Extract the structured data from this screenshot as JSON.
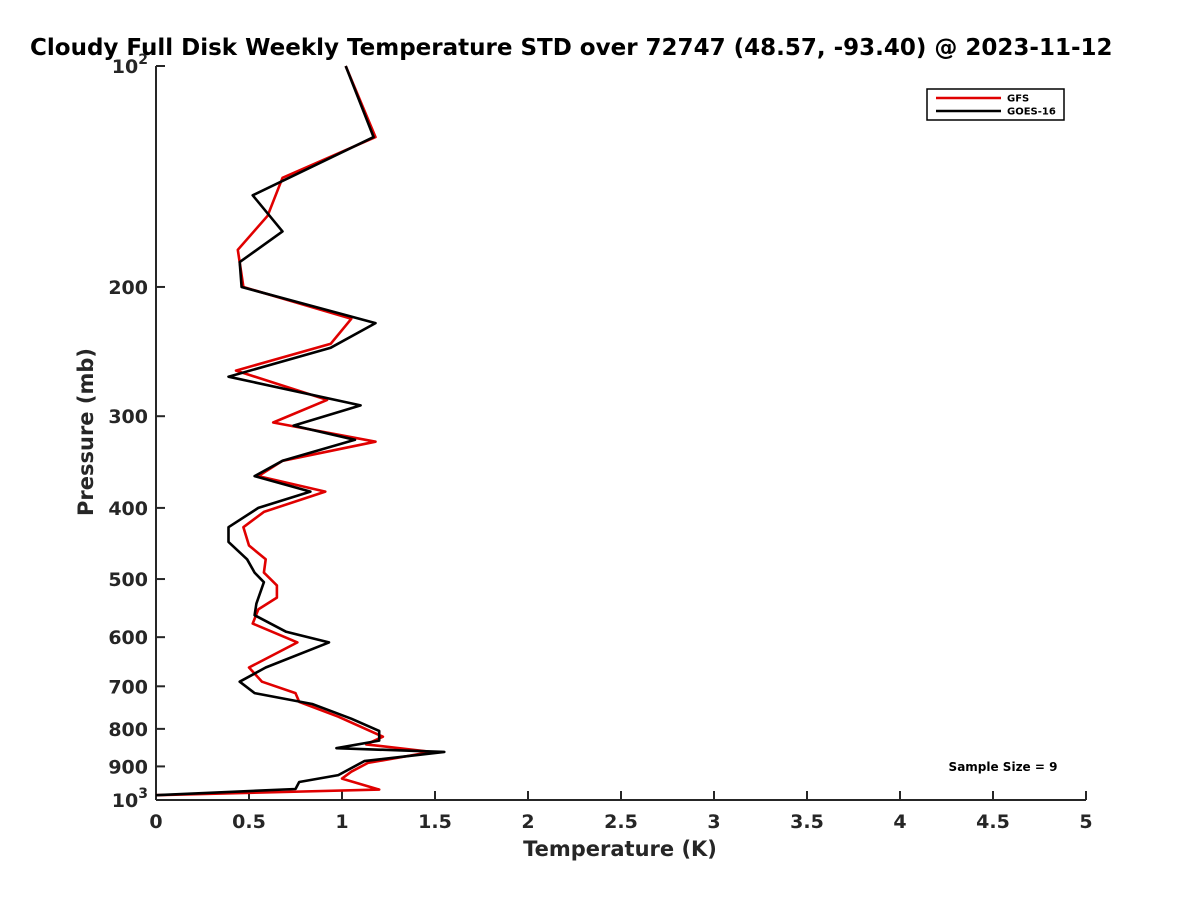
{
  "chart_data": {
    "type": "line",
    "title": "Cloudy Full Disk Weekly Temperature STD over 72747 (48.57, -93.40) @ 2023-11-12",
    "xlabel": "Temperature (K)",
    "ylabel": "Pressure (mb)",
    "xlim": [
      0,
      5
    ],
    "ylim": [
      100,
      1000
    ],
    "y_scale": "log",
    "y_reversed": true,
    "x_ticks": [
      0,
      0.5,
      1,
      1.5,
      2,
      2.5,
      3,
      3.5,
      4,
      4.5,
      5
    ],
    "x_tick_labels": [
      "0",
      "0.5",
      "1",
      "1.5",
      "2",
      "2.5",
      "3",
      "3.5",
      "4",
      "4.5",
      "5"
    ],
    "y_ticks": [
      100,
      200,
      300,
      400,
      500,
      600,
      700,
      800,
      900,
      1000
    ],
    "y_tick_labels": [
      {
        "base": "10",
        "exp": "2"
      },
      {
        "base": "200",
        "exp": ""
      },
      {
        "base": "300",
        "exp": ""
      },
      {
        "base": "400",
        "exp": ""
      },
      {
        "base": "500",
        "exp": ""
      },
      {
        "base": "600",
        "exp": ""
      },
      {
        "base": "700",
        "exp": ""
      },
      {
        "base": "800",
        "exp": ""
      },
      {
        "base": "900",
        "exp": ""
      },
      {
        "base": "10",
        "exp": "3"
      }
    ],
    "grid": false,
    "legend_position": "top-right",
    "annotation": "Sample Size = 9",
    "series": [
      {
        "name": "GFS",
        "color": "#e00000",
        "points": [
          [
            1.02,
            100
          ],
          [
            1.18,
            125
          ],
          [
            0.68,
            142
          ],
          [
            0.6,
            160
          ],
          [
            0.44,
            178
          ],
          [
            0.47,
            200
          ],
          [
            1.05,
            221
          ],
          [
            0.94,
            239
          ],
          [
            0.43,
            260
          ],
          [
            0.92,
            285
          ],
          [
            0.63,
            306
          ],
          [
            1.18,
            325
          ],
          [
            0.68,
            345
          ],
          [
            0.55,
            362
          ],
          [
            0.91,
            380
          ],
          [
            0.58,
            405
          ],
          [
            0.47,
            425
          ],
          [
            0.5,
            450
          ],
          [
            0.59,
            470
          ],
          [
            0.58,
            490
          ],
          [
            0.65,
            510
          ],
          [
            0.65,
            530
          ],
          [
            0.55,
            550
          ],
          [
            0.52,
            575
          ],
          [
            0.76,
            610
          ],
          [
            0.5,
            660
          ],
          [
            0.57,
            690
          ],
          [
            0.75,
            715
          ],
          [
            0.77,
            735
          ],
          [
            0.98,
            770
          ],
          [
            1.22,
            820
          ],
          [
            1.13,
            840
          ],
          [
            1.48,
            860
          ],
          [
            1.14,
            890
          ],
          [
            1.05,
            915
          ],
          [
            1.0,
            935
          ],
          [
            1.2,
            968
          ],
          [
            0.0,
            985
          ]
        ]
      },
      {
        "name": "GOES-16",
        "color": "#000000",
        "points": [
          [
            1.02,
            100
          ],
          [
            1.17,
            125
          ],
          [
            0.52,
            150
          ],
          [
            0.68,
            168
          ],
          [
            0.45,
            185
          ],
          [
            0.46,
            200
          ],
          [
            1.18,
            224
          ],
          [
            0.94,
            242
          ],
          [
            0.39,
            265
          ],
          [
            1.1,
            290
          ],
          [
            0.74,
            309
          ],
          [
            1.07,
            323
          ],
          [
            0.68,
            345
          ],
          [
            0.53,
            362
          ],
          [
            0.83,
            380
          ],
          [
            0.55,
            400
          ],
          [
            0.39,
            425
          ],
          [
            0.39,
            445
          ],
          [
            0.49,
            470
          ],
          [
            0.53,
            490
          ],
          [
            0.58,
            505
          ],
          [
            0.54,
            540
          ],
          [
            0.53,
            560
          ],
          [
            0.7,
            590
          ],
          [
            0.93,
            610
          ],
          [
            0.59,
            660
          ],
          [
            0.45,
            690
          ],
          [
            0.53,
            715
          ],
          [
            0.84,
            740
          ],
          [
            1.05,
            775
          ],
          [
            1.2,
            805
          ],
          [
            1.2,
            830
          ],
          [
            0.97,
            850
          ],
          [
            1.55,
            860
          ],
          [
            1.12,
            885
          ],
          [
            0.98,
            925
          ],
          [
            0.77,
            945
          ],
          [
            0.75,
            966
          ],
          [
            0.0,
            985
          ]
        ]
      }
    ]
  }
}
